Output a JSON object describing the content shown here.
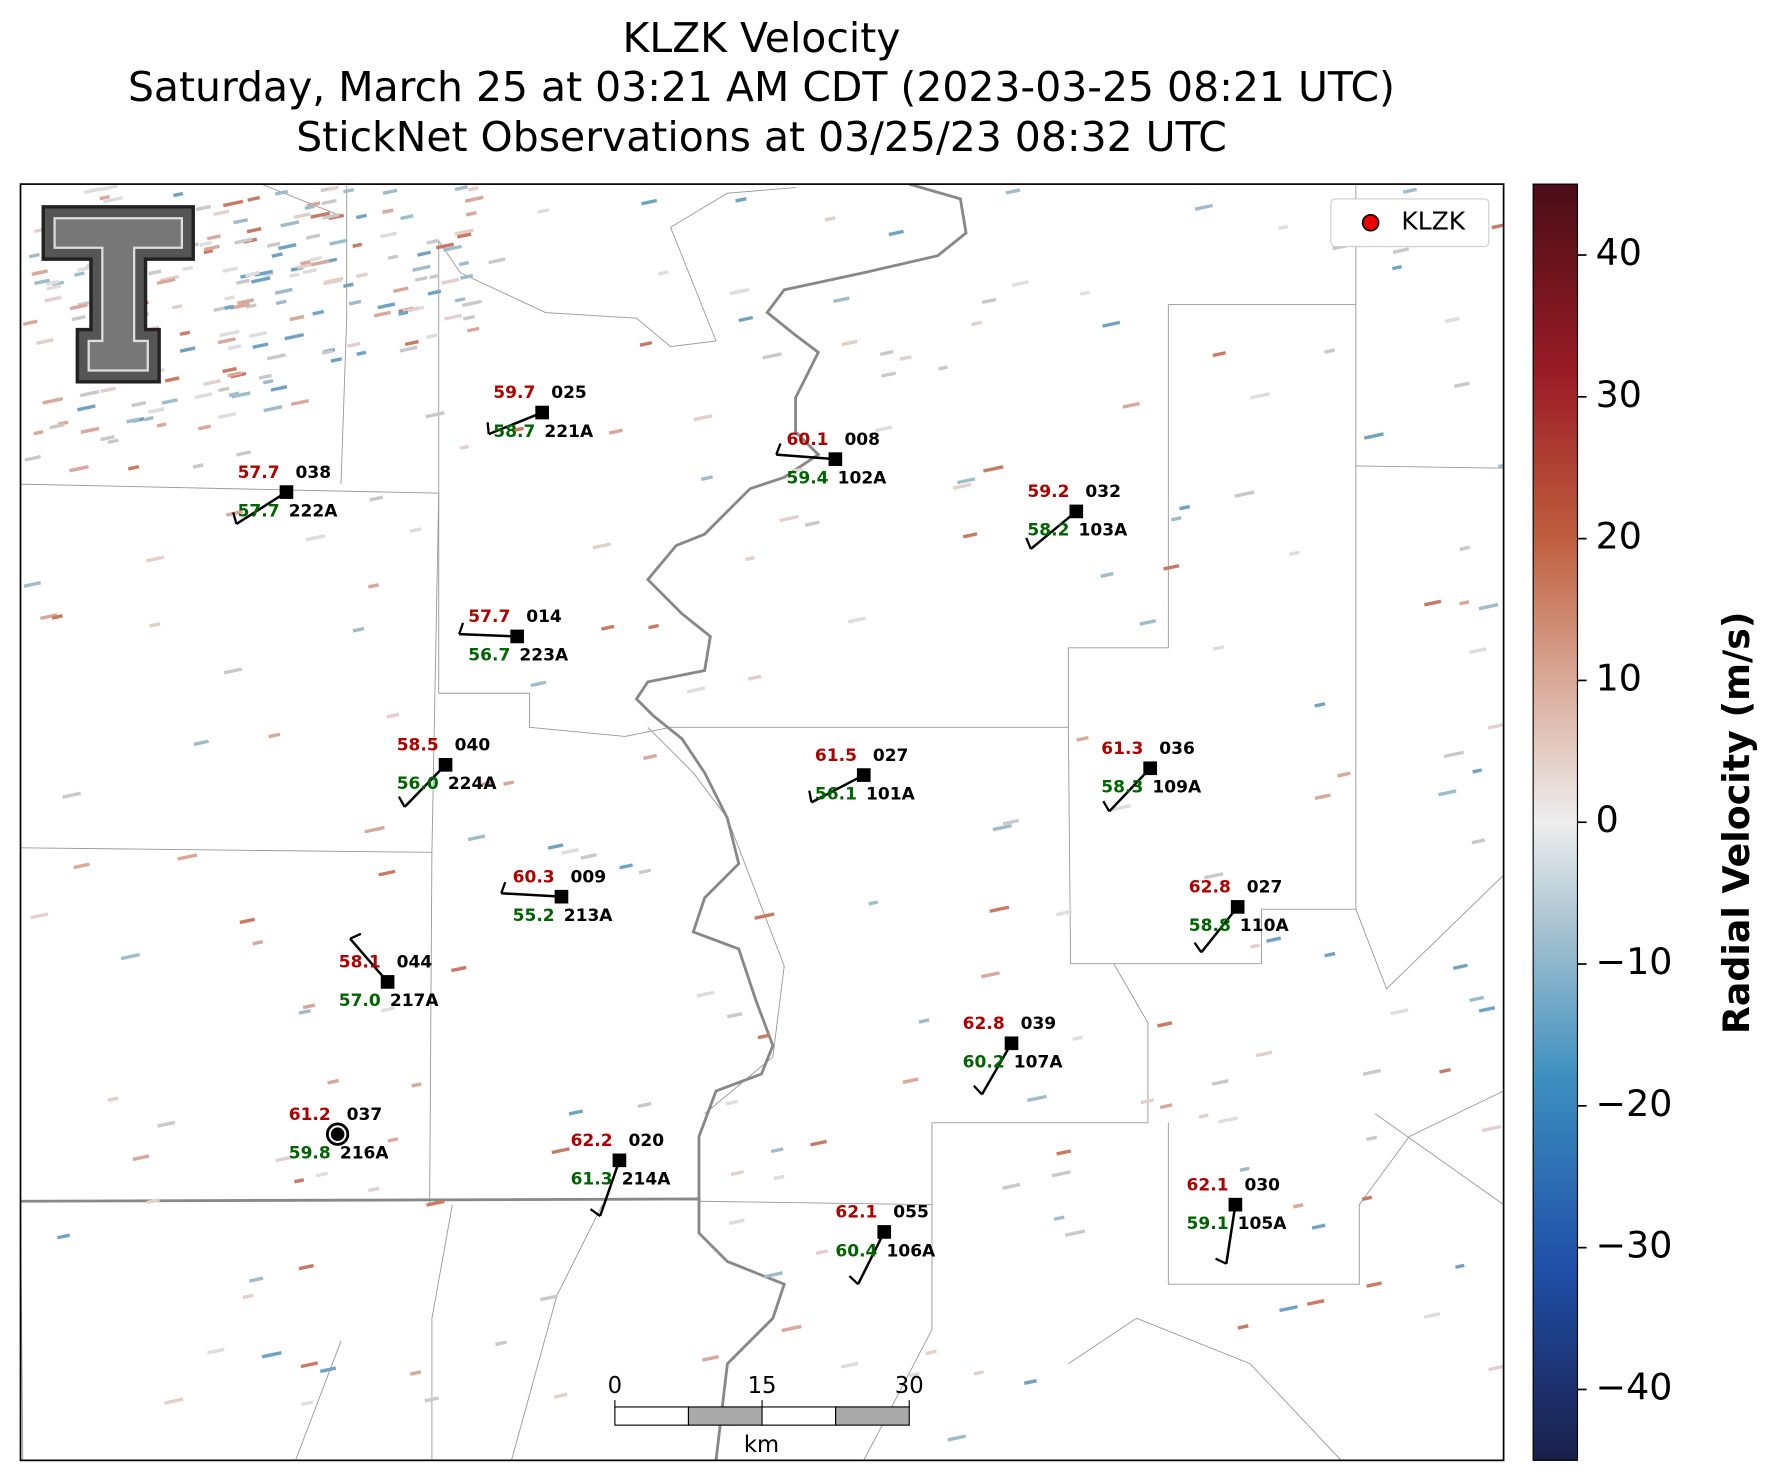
{
  "header": {
    "title_lines": [
      "KLZK Velocity",
      "Saturday, March 25 at 03:21 AM CDT (2023-03-25 08:21 UTC)",
      "StickNet Observations at 03/25/23 08:32 UTC"
    ]
  },
  "legend": {
    "label": "KLZK"
  },
  "colorbar": {
    "label": "Radial Velocity (m/s)",
    "lim": [
      -45,
      45
    ],
    "ticks": [
      40,
      30,
      20,
      10,
      0,
      {
        "value": -10,
        "label": "−10"
      },
      {
        "value": -20,
        "label": "−20"
      },
      {
        "value": -30,
        "label": "−30"
      },
      {
        "value": -40,
        "label": "−40"
      }
    ]
  },
  "scale_bar": {
    "ticks": [
      0,
      15,
      30
    ],
    "unit": "km"
  },
  "stations": [
    {
      "name": "221A",
      "id": "025",
      "temperature": "59.7",
      "dewpoint": "58.7"
    },
    {
      "name": "102A",
      "id": "008",
      "temperature": "60.1",
      "dewpoint": "59.4"
    },
    {
      "name": "222A",
      "id": "038",
      "temperature": "57.7",
      "dewpoint": "57.7"
    },
    {
      "name": "103A",
      "id": "032",
      "temperature": "59.2",
      "dewpoint": "58.2"
    },
    {
      "name": "223A",
      "id": "014",
      "temperature": "57.7",
      "dewpoint": "56.7"
    },
    {
      "name": "224A",
      "id": "040",
      "temperature": "58.5",
      "dewpoint": "56.0"
    },
    {
      "name": "101A",
      "id": "027",
      "temperature": "61.5",
      "dewpoint": "56.1"
    },
    {
      "name": "109A",
      "id": "036",
      "temperature": "61.3",
      "dewpoint": "58.3"
    },
    {
      "name": "213A",
      "id": "009",
      "temperature": "60.3",
      "dewpoint": "55.2"
    },
    {
      "name": "110A",
      "id": "027",
      "temperature": "62.8",
      "dewpoint": "58.8"
    },
    {
      "name": "217A",
      "id": "044",
      "temperature": "58.1",
      "dewpoint": "57.0"
    },
    {
      "name": "107A",
      "id": "039",
      "temperature": "62.8",
      "dewpoint": "60.2"
    },
    {
      "name": "216A",
      "id": "037",
      "temperature": "61.2",
      "dewpoint": "59.8"
    },
    {
      "name": "214A",
      "id": "020",
      "temperature": "62.2",
      "dewpoint": "61.3"
    },
    {
      "name": "106A",
      "id": "055",
      "temperature": "62.1",
      "dewpoint": "60.4"
    },
    {
      "name": "105A",
      "id": "030",
      "temperature": "62.1",
      "dewpoint": "59.1"
    }
  ]
}
